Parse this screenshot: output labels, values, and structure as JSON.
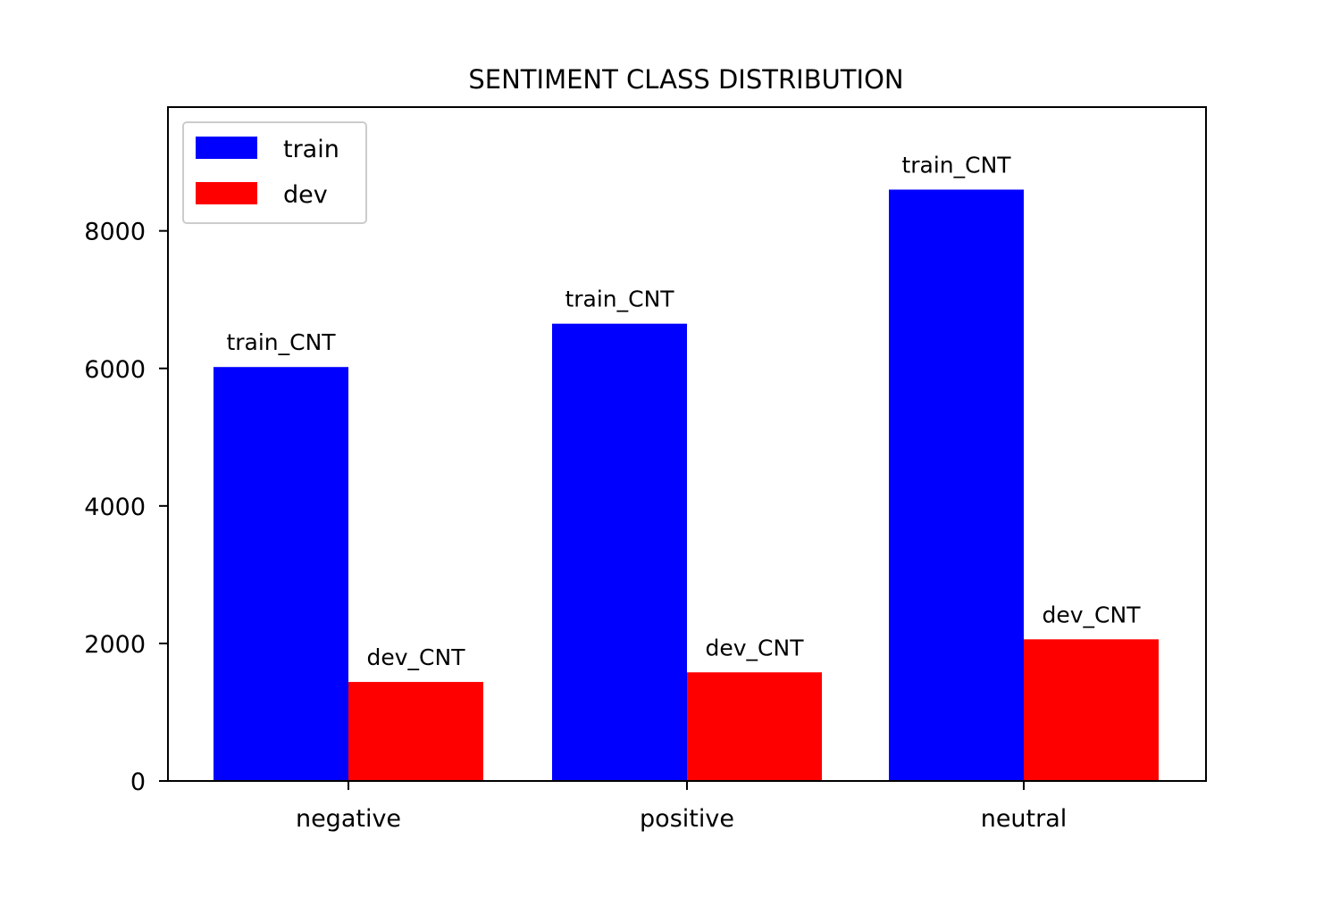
{
  "chart_data": {
    "type": "bar",
    "title": "SENTIMENT CLASS DISTRIBUTION",
    "xlabel": "",
    "ylabel": "",
    "categories": [
      "negative",
      "positive",
      "neutral"
    ],
    "series": [
      {
        "name": "train",
        "color": "#0000ff",
        "values": [
          6020,
          6650,
          8600
        ],
        "bar_label": "train_CNT"
      },
      {
        "name": "dev",
        "color": "#ff0000",
        "values": [
          1440,
          1580,
          2060
        ],
        "bar_label": "dev_CNT"
      }
    ],
    "ylim": [
      0,
      9800
    ],
    "yticks": [
      0,
      2000,
      4000,
      6000,
      8000
    ],
    "grid": false,
    "legend_position": "top-left"
  }
}
